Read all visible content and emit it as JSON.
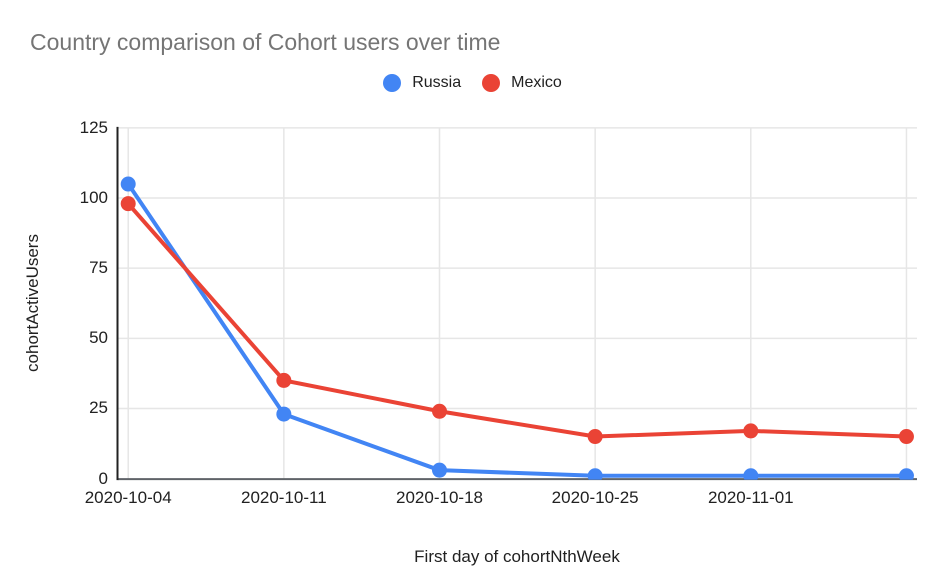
{
  "chart_data": {
    "type": "line",
    "title": "Country comparison of Cohort users over time",
    "xlabel": "First day of cohortNthWeek",
    "ylabel": "cohortActiveUsers",
    "x_tick_labels": [
      "2020-10-04",
      "2020-10-11",
      "2020-10-18",
      "2020-10-25",
      "2020-11-01"
    ],
    "num_points": 6,
    "series": [
      {
        "name": "Russia",
        "color": "#4285f4",
        "values": [
          105,
          23,
          3,
          1,
          1,
          1
        ]
      },
      {
        "name": "Mexico",
        "color": "#ea4335",
        "values": [
          98,
          35,
          24,
          15,
          17,
          15
        ]
      }
    ],
    "y_ticks": [
      0,
      25,
      50,
      75,
      100,
      125
    ],
    "ylim": [
      0,
      125
    ],
    "grid": true,
    "legend_position": "top",
    "colors": {
      "title_text": "#757575",
      "axis_text": "#212121",
      "gridline": "#e6e6e6",
      "y_axis_line": "#212121",
      "x_axis_line": "#5f6368"
    }
  }
}
